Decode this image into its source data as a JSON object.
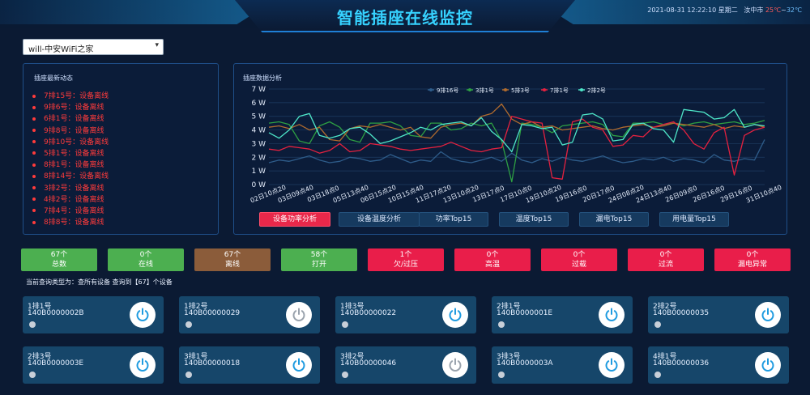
{
  "header": {
    "title": "智能插座在线监控",
    "datetime": "2021-08-31 12:22:10 星期二",
    "city": "汝中市",
    "temp_high": "25℃",
    "temp_sep": "~",
    "temp_low": "32℃"
  },
  "wifi_select": {
    "value": "will-中安WiFi之家"
  },
  "news": {
    "title": "插座最新动态",
    "items": [
      "7排15号：设备离线",
      "9排6号：设备离线",
      "6排1号：设备离线",
      "9排8号：设备离线",
      "9排10号：设备离线",
      "5排1号：设备离线",
      "8排1号：设备离线",
      "8排14号：设备离线",
      "3排2号：设备离线",
      "4排2号：设备离线",
      "7排4号：设备离线",
      "8排8号：设备离线"
    ]
  },
  "analysis": {
    "title": "插座数据分析",
    "tabs": [
      "设备功率分析",
      "设备温度分析",
      "功率Top15",
      "温度Top15",
      "漏电Top15",
      "用电量Top15"
    ],
    "active_tab": 0
  },
  "chart_data": {
    "type": "line",
    "ylim": [
      0,
      7
    ],
    "y_ticks": [
      "0 W",
      "1 W",
      "2 W",
      "3 W",
      "4 W",
      "5 W",
      "6 W",
      "7 W"
    ],
    "x_ticks": [
      "02日10点20",
      "03日09点40",
      "03日18点0",
      "05日13点40",
      "06日15点20",
      "10日15点40",
      "11日17点20",
      "13日10点20",
      "13日17点0",
      "17日10点0",
      "19日10点20",
      "19日16点0",
      "20日17点0",
      "24日08点20",
      "24日13点40",
      "26日09点0",
      "26日16点0",
      "29日16点0",
      "31日10点40"
    ],
    "grid": true,
    "legend_position": "top",
    "series": [
      {
        "name": "9排16号",
        "color": "#2e5c8a",
        "values": [
          1.6,
          1.8,
          1.7,
          1.9,
          2.1,
          1.8,
          1.6,
          1.7,
          2.0,
          1.9,
          1.7,
          1.8,
          2.2,
          1.9,
          1.6,
          1.8,
          1.7,
          2.4,
          1.9,
          1.7,
          1.6,
          1.8,
          2.0,
          1.7,
          2.3,
          1.8,
          1.6,
          1.9,
          1.7,
          2.0,
          1.8,
          1.7,
          1.9,
          2.1,
          1.8,
          1.6,
          1.7,
          1.9,
          1.8,
          2.0,
          1.7,
          1.9,
          1.8,
          1.6,
          2.2,
          1.8,
          1.7,
          1.9,
          1.8,
          3.3
        ]
      },
      {
        "name": "3排1号",
        "color": "#2ea043",
        "values": [
          4.5,
          4.6,
          4.4,
          3.2,
          3.0,
          4.3,
          4.6,
          4.2,
          3.3,
          3.1,
          4.5,
          4.5,
          4.6,
          4.3,
          3.6,
          3.5,
          4.5,
          4.5,
          4.0,
          4.1,
          4.5,
          4.3,
          4.5,
          3.2,
          0.2,
          4.5,
          4.4,
          4.2,
          3.8,
          4.3,
          4.4,
          4.5,
          4.6,
          4.4,
          3.6,
          3.5,
          4.5,
          4.5,
          4.6,
          4.4,
          4.5,
          4.3,
          4.5,
          4.6,
          4.4,
          4.5,
          4.6,
          4.4,
          4.5,
          4.7
        ]
      },
      {
        "name": "5排3号",
        "color": "#b06b2e",
        "values": [
          4.2,
          4.3,
          4.1,
          4.4,
          4.0,
          4.2,
          3.3,
          3.2,
          4.1,
          4.3,
          4.2,
          4.4,
          4.2,
          4.0,
          4.2,
          3.5,
          3.4,
          4.2,
          4.4,
          4.5,
          4.3,
          5.0,
          5.2,
          5.9,
          4.8,
          4.4,
          4.6,
          4.2,
          4.3,
          4.0,
          4.1,
          4.2,
          4.3,
          4.1,
          4.0,
          4.2,
          4.3,
          4.4,
          4.2,
          4.3,
          4.5,
          4.4,
          4.3,
          4.2,
          4.4,
          4.1,
          4.3,
          4.2,
          4.4,
          4.2
        ]
      },
      {
        "name": "7排1号",
        "color": "#e5213f",
        "values": [
          2.6,
          2.5,
          2.8,
          2.7,
          2.6,
          2.3,
          2.5,
          3.0,
          2.4,
          2.5,
          3.0,
          2.9,
          2.8,
          2.6,
          2.5,
          2.6,
          2.7,
          2.8,
          3.1,
          2.8,
          2.5,
          2.4,
          2.6,
          2.7,
          5.0,
          4.8,
          4.6,
          4.5,
          0.5,
          0.4,
          4.6,
          4.8,
          4.2,
          4.0,
          2.8,
          2.9,
          3.6,
          3.5,
          4.2,
          4.4,
          4.6,
          4.0,
          3.0,
          2.6,
          3.8,
          4.2,
          0.7,
          3.6,
          4.0,
          4.2
        ]
      },
      {
        "name": "2排2号",
        "color": "#4ee6c8",
        "values": [
          3.8,
          3.4,
          4.0,
          5.0,
          5.2,
          3.6,
          3.4,
          3.6,
          4.1,
          4.2,
          3.7,
          3.0,
          3.2,
          3.5,
          3.8,
          4.2,
          4.0,
          4.4,
          4.5,
          4.6,
          4.3,
          4.9,
          3.9,
          3.3,
          2.4,
          4.4,
          4.3,
          4.1,
          4.2,
          2.9,
          3.1,
          5.1,
          5.2,
          4.8,
          3.2,
          3.3,
          4.4,
          4.5,
          4.1,
          4.0,
          3.1,
          5.5,
          5.4,
          5.3,
          4.8,
          4.9,
          5.5,
          4.2,
          4.4,
          4.3
        ]
      }
    ]
  },
  "stats": [
    {
      "value": "67个",
      "label": "总数",
      "color": "green"
    },
    {
      "value": "0个",
      "label": "在线",
      "color": "green"
    },
    {
      "value": "67个",
      "label": "离线",
      "color": "brown"
    },
    {
      "value": "58个",
      "label": "打开",
      "color": "green"
    },
    {
      "value": "1个",
      "label": "欠/过压",
      "color": "red"
    },
    {
      "value": "0个",
      "label": "高温",
      "color": "red"
    },
    {
      "value": "0个",
      "label": "过载",
      "color": "red"
    },
    {
      "value": "0个",
      "label": "过流",
      "color": "red"
    },
    {
      "value": "0个",
      "label": "漏电异常",
      "color": "red"
    }
  ],
  "query_info": "当前查询类型为：查所有设备 查询到【67】个设备",
  "devices": [
    {
      "name": "1排1号",
      "code": "140B0000002B",
      "power_color": "#1e9be0"
    },
    {
      "name": "1排2号",
      "code": "140B00000029",
      "power_color": "#9aa3ad"
    },
    {
      "name": "1排3号",
      "code": "140B00000022",
      "power_color": "#1e9be0"
    },
    {
      "name": "2排1号",
      "code": "140B0000001E",
      "power_color": "#1e9be0"
    },
    {
      "name": "2排2号",
      "code": "140B00000035",
      "power_color": "#1e9be0"
    },
    {
      "name": "2排3号",
      "code": "140B0000003E",
      "power_color": "#1e9be0"
    },
    {
      "name": "3排1号",
      "code": "140B00000018",
      "power_color": "#1e9be0"
    },
    {
      "name": "3排2号",
      "code": "140B00000046",
      "power_color": "#9aa3ad"
    },
    {
      "name": "3排3号",
      "code": "140B0000003A",
      "power_color": "#1e9be0"
    },
    {
      "name": "4排1号",
      "code": "140B00000036",
      "power_color": "#1e9be0"
    }
  ]
}
